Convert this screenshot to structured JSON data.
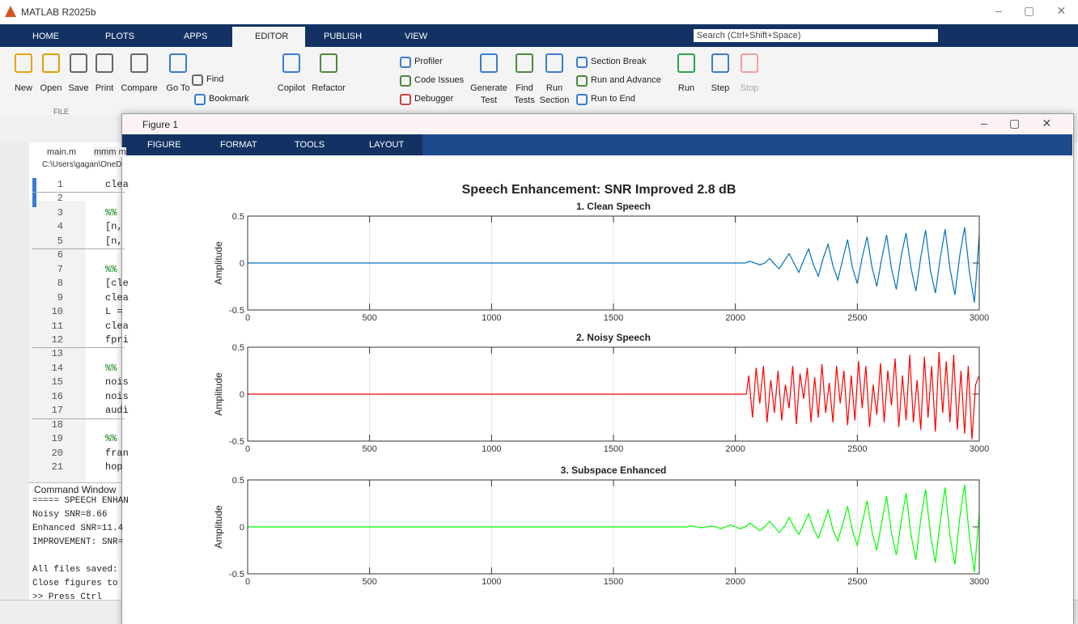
{
  "window": {
    "title": "MATLAB R2025b"
  },
  "tabs": [
    "HOME",
    "PLOTS",
    "APPS",
    "EDITOR",
    "PUBLISH",
    "VIEW"
  ],
  "search": "Search (Ctrl+Shift+Space)",
  "ribbon": {
    "buttons": [
      "New",
      "Open",
      "Save",
      "Print",
      "Compare",
      "Go To",
      "Find",
      "Bookmark",
      "Copilot",
      "Refactor",
      "Profiler",
      "Code Issues",
      "Debugger",
      "Generate Test",
      "Find Tests",
      "Run Section",
      "Section Break",
      "Run and Advance",
      "Run to End",
      "Run",
      "Step",
      "Stop"
    ],
    "sections": [
      "FILE"
    ]
  },
  "editor": {
    "tabs": [
      "main.m",
      "mmm m"
    ],
    "path": "C:\\Users\\gagan\\OneD",
    "lines": [
      {
        "n": 1,
        "code": "clea"
      },
      {
        "n": 2
      },
      {
        "n": 3,
        "code": "%% "
      },
      {
        "n": 4,
        "code": "[n,"
      },
      {
        "n": 5,
        "code": "[n,"
      },
      {
        "n": 6
      },
      {
        "n": 7,
        "code": "%% "
      },
      {
        "n": 8,
        "code": "[cle"
      },
      {
        "n": 9,
        "code": "clea"
      },
      {
        "n": 10,
        "code": "L ="
      },
      {
        "n": 11,
        "code": "clea"
      },
      {
        "n": 12,
        "code": "fpri"
      },
      {
        "n": 13
      },
      {
        "n": 14,
        "code": "%% "
      },
      {
        "n": 15,
        "code": "nois"
      },
      {
        "n": 16,
        "code": "nois"
      },
      {
        "n": 17,
        "code": "audi"
      },
      {
        "n": 18
      },
      {
        "n": 19,
        "code": "%% "
      },
      {
        "n": 20,
        "code": "fran"
      },
      {
        "n": 21,
        "code": "hop"
      }
    ]
  },
  "command_window": {
    "title": "Command Window",
    "lines": [
      "===== SPEECH ENHAN",
      "Noisy  SNR=8.66 ",
      "Enhanced SNR=11.4",
      "IMPROVEMENT: SNR=",
      "All files saved: ",
      "Close figures to ",
      ">> Press Ctrl"
    ]
  },
  "figure": {
    "title": "Figure 1",
    "tabs": [
      "FIGURE",
      "FORMAT",
      "TOOLS",
      "LAYOUT"
    ],
    "suptitle": "Speech Enhancement: SNR Improved 2.8 dB"
  },
  "chart_data": [
    {
      "type": "line",
      "title": "1. Clean Speech",
      "ylabel": "Amplitude",
      "grid": true,
      "xlim": [
        0,
        3000
      ],
      "xticks": [
        0,
        500,
        1000,
        1500,
        2000,
        2500,
        3000
      ],
      "ylim": [
        -0.5,
        0.5
      ],
      "yticks": [
        -0.5,
        0,
        0.5
      ],
      "x": [
        0,
        2040,
        2060,
        2080,
        2100,
        2120,
        2140,
        2160,
        2180,
        2200,
        2220,
        2240,
        2260,
        2280,
        2300,
        2320,
        2340,
        2360,
        2380,
        2400,
        2420,
        2440,
        2460,
        2480,
        2500,
        2520,
        2540,
        2560,
        2580,
        2600,
        2620,
        2640,
        2660,
        2680,
        2700,
        2720,
        2740,
        2760,
        2780,
        2800,
        2820,
        2840,
        2860,
        2880,
        2900,
        2920,
        2940,
        2960,
        2980,
        3000
      ],
      "series": [
        {
          "color": "#0072bd",
          "values": [
            0,
            0,
            0.02,
            0,
            -0.02,
            0,
            0.05,
            -0.01,
            -0.06,
            0.02,
            0.1,
            0,
            -0.1,
            0.03,
            0.15,
            -0.02,
            -0.14,
            0.05,
            0.2,
            -0.03,
            -0.18,
            0.04,
            0.25,
            -0.05,
            -0.22,
            0.06,
            0.28,
            -0.04,
            -0.25,
            0.05,
            0.3,
            -0.06,
            -0.28,
            0.08,
            0.32,
            -0.05,
            -0.3,
            0.06,
            0.35,
            -0.08,
            -0.32,
            0.05,
            0.36,
            -0.06,
            -0.34,
            0.08,
            0.38,
            -0.1,
            -0.42,
            0.3
          ]
        }
      ]
    },
    {
      "type": "line",
      "title": "2. Noisy Speech",
      "ylabel": "Amplitude",
      "grid": true,
      "xlim": [
        0,
        3000
      ],
      "xticks": [
        0,
        500,
        1000,
        1500,
        2000,
        2500,
        3000
      ],
      "ylim": [
        -0.5,
        0.5
      ],
      "yticks": [
        -0.5,
        0,
        0.5
      ],
      "x": [
        0,
        2045,
        2055,
        2070,
        2085,
        2100,
        2115,
        2130,
        2145,
        2160,
        2175,
        2190,
        2205,
        2220,
        2235,
        2250,
        2265,
        2280,
        2295,
        2310,
        2325,
        2340,
        2355,
        2370,
        2385,
        2400,
        2415,
        2430,
        2445,
        2460,
        2475,
        2490,
        2505,
        2520,
        2535,
        2550,
        2565,
        2580,
        2595,
        2610,
        2625,
        2640,
        2655,
        2670,
        2685,
        2700,
        2715,
        2730,
        2745,
        2760,
        2775,
        2790,
        2805,
        2820,
        2835,
        2850,
        2865,
        2880,
        2895,
        2910,
        2925,
        2940,
        2955,
        2970,
        2985,
        3000
      ],
      "series": [
        {
          "color": "#ff0000",
          "values": [
            0,
            0,
            0.2,
            -0.25,
            0.28,
            -0.1,
            0.3,
            -0.3,
            0.15,
            -0.2,
            0.25,
            -0.28,
            0.1,
            -0.15,
            0.3,
            -0.32,
            0.22,
            -0.05,
            0.28,
            -0.3,
            0.18,
            -0.25,
            0.32,
            -0.2,
            0.12,
            -0.3,
            0.3,
            -0.1,
            0.25,
            -0.33,
            0.2,
            -0.28,
            0.35,
            -0.15,
            0.3,
            -0.35,
            0.1,
            -0.22,
            0.33,
            -0.3,
            0.25,
            -0.12,
            0.38,
            -0.35,
            0.2,
            -0.28,
            0.42,
            -0.3,
            0.15,
            -0.38,
            0.4,
            -0.25,
            0.3,
            -0.4,
            0.45,
            -0.2,
            0.35,
            -0.3,
            0.42,
            -0.38,
            0.25,
            -0.42,
            0.3,
            -0.48,
            0.1,
            0.2
          ]
        }
      ]
    },
    {
      "type": "line",
      "title": "3. Subspace Enhanced",
      "ylabel": "Amplitude",
      "grid": true,
      "xlim": [
        0,
        3000
      ],
      "xticks": [
        0,
        500,
        1000,
        1500,
        2000,
        2500,
        3000
      ],
      "ylim": [
        -0.5,
        0.5
      ],
      "yticks": [
        -0.5,
        0,
        0.5
      ],
      "x": [
        0,
        1800,
        1820,
        1840,
        1860,
        1880,
        1900,
        1920,
        1940,
        1960,
        1980,
        2000,
        2020,
        2040,
        2060,
        2080,
        2100,
        2120,
        2140,
        2160,
        2180,
        2200,
        2220,
        2240,
        2260,
        2280,
        2300,
        2320,
        2340,
        2360,
        2380,
        2400,
        2420,
        2440,
        2460,
        2480,
        2500,
        2520,
        2540,
        2560,
        2580,
        2600,
        2620,
        2640,
        2660,
        2680,
        2700,
        2720,
        2740,
        2760,
        2780,
        2800,
        2820,
        2840,
        2860,
        2880,
        2900,
        2920,
        2940,
        2960,
        2980,
        3000
      ],
      "series": [
        {
          "color": "#00ff00",
          "values": [
            0,
            0,
            0.01,
            0,
            -0.01,
            0,
            0.01,
            0,
            -0.02,
            0,
            0.02,
            0,
            -0.02,
            0,
            0.04,
            0,
            -0.04,
            0,
            0.06,
            0,
            -0.06,
            0,
            0.1,
            0,
            -0.08,
            0.02,
            0.14,
            -0.02,
            -0.12,
            0.02,
            0.18,
            -0.03,
            -0.15,
            0.03,
            0.22,
            -0.04,
            -0.2,
            0.04,
            0.28,
            -0.05,
            -0.25,
            0.05,
            0.33,
            -0.06,
            -0.3,
            0.06,
            0.36,
            -0.08,
            -0.35,
            0.08,
            0.4,
            -0.08,
            -0.38,
            0.06,
            0.42,
            -0.1,
            -0.4,
            0.1,
            0.45,
            -0.12,
            -0.48,
            0.15
          ]
        }
      ]
    }
  ]
}
